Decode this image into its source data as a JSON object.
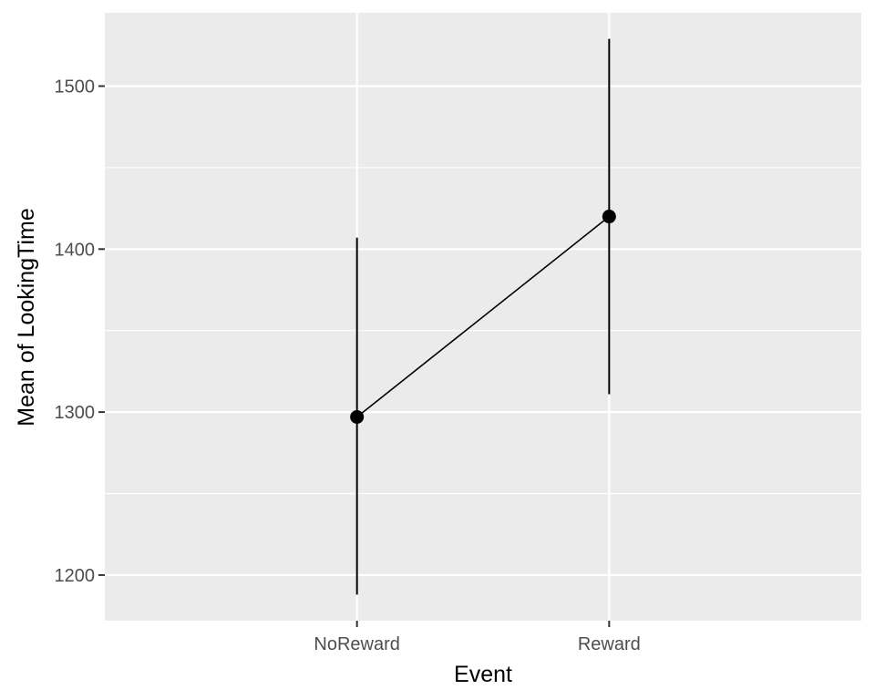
{
  "chart_data": {
    "type": "line",
    "title": "",
    "xlabel": "Event",
    "ylabel": "Mean of LookingTime",
    "categories": [
      "NoReward",
      "Reward"
    ],
    "series": [
      {
        "values": [
          1297,
          1420
        ],
        "error_low": [
          1188,
          1311
        ],
        "error_high": [
          1407,
          1529
        ]
      }
    ],
    "y_ticks": [
      1200,
      1300,
      1400,
      1500
    ],
    "ylim": [
      1172,
      1545
    ],
    "grid": true,
    "legend": "none",
    "colors": {
      "panel_background": "#ebebeb",
      "grid": "#ffffff",
      "mark": "#000000",
      "tick_text": "#4d4d4d"
    }
  }
}
